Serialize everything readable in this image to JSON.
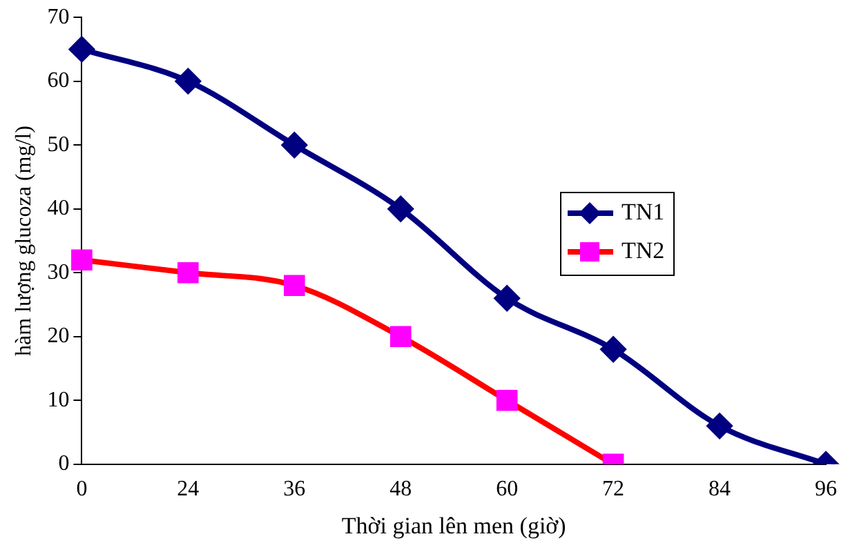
{
  "chart_data": {
    "type": "line",
    "xlabel": "Thời gian lên men (giờ)",
    "ylabel": "hàm lượng glucoza (mg/l)",
    "categories": [
      "0",
      "24",
      "36",
      "48",
      "60",
      "72",
      "84",
      "96"
    ],
    "series": [
      {
        "name": "TN1",
        "color": "#000080",
        "marker": "diamond",
        "values": [
          65,
          60,
          50,
          40,
          26,
          18,
          6,
          0
        ]
      },
      {
        "name": "TN2",
        "color": "#ff0000",
        "marker": "square",
        "values": [
          32,
          30,
          28,
          20,
          10,
          0,
          null,
          null
        ]
      }
    ],
    "ylim": [
      0,
      70
    ],
    "yticks": [
      0,
      10,
      20,
      30,
      40,
      50,
      60,
      70
    ],
    "grid": false,
    "legend": "right"
  }
}
